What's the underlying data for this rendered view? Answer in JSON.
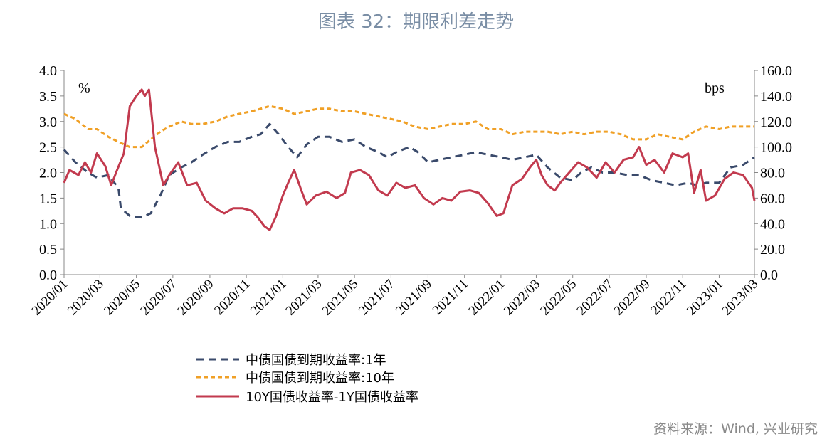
{
  "title": "图表 32：期限利差走势",
  "source": "资料来源：Wind, 兴业研究",
  "colors": {
    "y1": "#3a4a6b",
    "y10": "#f0a026",
    "spread": "#c23a4e"
  },
  "chart_data": {
    "type": "line",
    "left_unit": "%",
    "right_unit": "bps",
    "ylim_left": [
      0,
      4
    ],
    "ylim_right": [
      0,
      160
    ],
    "left_ticks": [
      "0.0",
      "0.5",
      "1.0",
      "1.5",
      "2.0",
      "2.5",
      "3.0",
      "3.5",
      "4.0"
    ],
    "right_ticks": [
      "0.0",
      "20.0",
      "40.0",
      "60.0",
      "80.0",
      "100.0",
      "120.0",
      "140.0",
      "160.0"
    ],
    "x_ticks": [
      "2020/01",
      "2020/03",
      "2020/05",
      "2020/07",
      "2020/09",
      "2020/11",
      "2021/01",
      "2021/03",
      "2021/05",
      "2021/07",
      "2021/09",
      "2021/11",
      "2022/01",
      "2022/03",
      "2022/05",
      "2022/07",
      "2022/09",
      "2022/11",
      "2023/01",
      "2023/03"
    ],
    "x_range": [
      "2020-01-01",
      "2023-03-01"
    ],
    "grid": false,
    "legend_position": "bottom",
    "series": [
      {
        "name": "中债国债到期收益率:1年",
        "axis": "left",
        "style": "dashed",
        "points": [
          [
            "2020-01-01",
            2.45
          ],
          [
            "2020-01-20",
            2.2
          ],
          [
            "2020-02-10",
            2.0
          ],
          [
            "2020-02-25",
            1.9
          ],
          [
            "2020-03-15",
            1.95
          ],
          [
            "2020-04-01",
            1.7
          ],
          [
            "2020-04-05",
            1.3
          ],
          [
            "2020-04-20",
            1.15
          ],
          [
            "2020-05-10",
            1.12
          ],
          [
            "2020-05-25",
            1.2
          ],
          [
            "2020-06-10",
            1.55
          ],
          [
            "2020-06-25",
            1.95
          ],
          [
            "2020-07-15",
            2.1
          ],
          [
            "2020-08-01",
            2.2
          ],
          [
            "2020-08-20",
            2.35
          ],
          [
            "2020-09-10",
            2.5
          ],
          [
            "2020-10-01",
            2.6
          ],
          [
            "2020-10-20",
            2.6
          ],
          [
            "2020-11-10",
            2.7
          ],
          [
            "2020-11-25",
            2.75
          ],
          [
            "2020-12-10",
            2.95
          ],
          [
            "2020-12-25",
            2.75
          ],
          [
            "2021-01-10",
            2.5
          ],
          [
            "2021-01-25",
            2.3
          ],
          [
            "2021-02-10",
            2.55
          ],
          [
            "2021-03-01",
            2.7
          ],
          [
            "2021-03-20",
            2.7
          ],
          [
            "2021-04-10",
            2.6
          ],
          [
            "2021-05-01",
            2.65
          ],
          [
            "2021-05-20",
            2.5
          ],
          [
            "2021-06-10",
            2.4
          ],
          [
            "2021-06-25",
            2.3
          ],
          [
            "2021-07-10",
            2.4
          ],
          [
            "2021-08-01",
            2.5
          ],
          [
            "2021-08-15",
            2.4
          ],
          [
            "2021-09-01",
            2.2
          ],
          [
            "2021-09-20",
            2.25
          ],
          [
            "2021-10-10",
            2.3
          ],
          [
            "2021-11-01",
            2.35
          ],
          [
            "2021-11-20",
            2.4
          ],
          [
            "2021-12-10",
            2.35
          ],
          [
            "2022-01-01",
            2.3
          ],
          [
            "2022-01-20",
            2.25
          ],
          [
            "2022-02-10",
            2.3
          ],
          [
            "2022-03-01",
            2.35
          ],
          [
            "2022-03-20",
            2.1
          ],
          [
            "2022-04-10",
            1.9
          ],
          [
            "2022-05-01",
            1.85
          ],
          [
            "2022-05-15",
            2.0
          ],
          [
            "2022-06-01",
            2.1
          ],
          [
            "2022-06-20",
            2.0
          ],
          [
            "2022-07-10",
            2.0
          ],
          [
            "2022-08-01",
            1.95
          ],
          [
            "2022-08-20",
            1.95
          ],
          [
            "2022-09-10",
            1.85
          ],
          [
            "2022-10-01",
            1.8
          ],
          [
            "2022-10-20",
            1.75
          ],
          [
            "2022-11-10",
            1.8
          ],
          [
            "2022-11-25",
            1.75
          ],
          [
            "2022-12-10",
            1.8
          ],
          [
            "2023-01-01",
            1.8
          ],
          [
            "2023-01-20",
            2.1
          ],
          [
            "2023-02-10",
            2.15
          ],
          [
            "2023-03-01",
            2.3
          ]
        ]
      },
      {
        "name": "中债国债到期收益率:10年",
        "axis": "left",
        "style": "dashed",
        "points": [
          [
            "2020-01-01",
            3.15
          ],
          [
            "2020-01-20",
            3.05
          ],
          [
            "2020-02-10",
            2.85
          ],
          [
            "2020-02-25",
            2.85
          ],
          [
            "2020-03-15",
            2.7
          ],
          [
            "2020-04-01",
            2.6
          ],
          [
            "2020-04-20",
            2.5
          ],
          [
            "2020-05-10",
            2.5
          ],
          [
            "2020-05-25",
            2.65
          ],
          [
            "2020-06-10",
            2.8
          ],
          [
            "2020-06-25",
            2.9
          ],
          [
            "2020-07-15",
            3.0
          ],
          [
            "2020-08-01",
            2.95
          ],
          [
            "2020-08-20",
            2.95
          ],
          [
            "2020-09-10",
            3.0
          ],
          [
            "2020-10-01",
            3.1
          ],
          [
            "2020-10-20",
            3.15
          ],
          [
            "2020-11-10",
            3.2
          ],
          [
            "2020-11-25",
            3.25
          ],
          [
            "2020-12-10",
            3.3
          ],
          [
            "2021-01-01",
            3.25
          ],
          [
            "2021-01-20",
            3.15
          ],
          [
            "2021-02-10",
            3.2
          ],
          [
            "2021-03-01",
            3.25
          ],
          [
            "2021-03-20",
            3.25
          ],
          [
            "2021-04-10",
            3.2
          ],
          [
            "2021-05-01",
            3.2
          ],
          [
            "2021-05-20",
            3.15
          ],
          [
            "2021-06-10",
            3.1
          ],
          [
            "2021-07-01",
            3.05
          ],
          [
            "2021-07-20",
            3.0
          ],
          [
            "2021-08-10",
            2.9
          ],
          [
            "2021-09-01",
            2.85
          ],
          [
            "2021-09-20",
            2.9
          ],
          [
            "2021-10-10",
            2.95
          ],
          [
            "2021-11-01",
            2.95
          ],
          [
            "2021-11-20",
            3.0
          ],
          [
            "2021-12-10",
            2.85
          ],
          [
            "2022-01-01",
            2.85
          ],
          [
            "2022-01-20",
            2.75
          ],
          [
            "2022-02-10",
            2.8
          ],
          [
            "2022-03-01",
            2.8
          ],
          [
            "2022-03-20",
            2.8
          ],
          [
            "2022-04-10",
            2.75
          ],
          [
            "2022-05-01",
            2.8
          ],
          [
            "2022-05-20",
            2.75
          ],
          [
            "2022-06-10",
            2.8
          ],
          [
            "2022-07-01",
            2.8
          ],
          [
            "2022-07-20",
            2.75
          ],
          [
            "2022-08-10",
            2.65
          ],
          [
            "2022-09-01",
            2.65
          ],
          [
            "2022-09-20",
            2.75
          ],
          [
            "2022-10-10",
            2.7
          ],
          [
            "2022-11-01",
            2.65
          ],
          [
            "2022-11-20",
            2.8
          ],
          [
            "2022-12-10",
            2.9
          ],
          [
            "2023-01-01",
            2.85
          ],
          [
            "2023-01-20",
            2.9
          ],
          [
            "2023-02-10",
            2.9
          ],
          [
            "2023-03-01",
            2.9
          ]
        ]
      },
      {
        "name": "10Y国债收益率-1Y国债收益率",
        "axis": "right",
        "style": "solid",
        "points": [
          [
            "2020-01-01",
            72
          ],
          [
            "2020-01-10",
            82
          ],
          [
            "2020-01-25",
            78
          ],
          [
            "2020-02-05",
            88
          ],
          [
            "2020-02-15",
            80
          ],
          [
            "2020-02-25",
            95
          ],
          [
            "2020-03-10",
            85
          ],
          [
            "2020-03-20",
            70
          ],
          [
            "2020-03-28",
            80
          ],
          [
            "2020-04-10",
            95
          ],
          [
            "2020-04-20",
            132
          ],
          [
            "2020-05-01",
            140
          ],
          [
            "2020-05-10",
            145
          ],
          [
            "2020-05-15",
            140
          ],
          [
            "2020-05-22",
            145
          ],
          [
            "2020-06-01",
            100
          ],
          [
            "2020-06-15",
            70
          ],
          [
            "2020-06-25",
            78
          ],
          [
            "2020-07-10",
            88
          ],
          [
            "2020-07-25",
            70
          ],
          [
            "2020-08-10",
            72
          ],
          [
            "2020-08-25",
            58
          ],
          [
            "2020-09-10",
            52
          ],
          [
            "2020-09-25",
            48
          ],
          [
            "2020-10-10",
            52
          ],
          [
            "2020-10-25",
            52
          ],
          [
            "2020-11-10",
            50
          ],
          [
            "2020-11-20",
            45
          ],
          [
            "2020-12-01",
            38
          ],
          [
            "2020-12-10",
            35
          ],
          [
            "2020-12-20",
            45
          ],
          [
            "2021-01-01",
            62
          ],
          [
            "2021-01-10",
            72
          ],
          [
            "2021-01-20",
            82
          ],
          [
            "2021-02-01",
            66
          ],
          [
            "2021-02-10",
            55
          ],
          [
            "2021-02-25",
            62
          ],
          [
            "2021-03-15",
            65
          ],
          [
            "2021-04-01",
            60
          ],
          [
            "2021-04-15",
            64
          ],
          [
            "2021-04-25",
            80
          ],
          [
            "2021-05-10",
            82
          ],
          [
            "2021-05-25",
            78
          ],
          [
            "2021-06-10",
            66
          ],
          [
            "2021-06-25",
            62
          ],
          [
            "2021-07-10",
            72
          ],
          [
            "2021-07-25",
            68
          ],
          [
            "2021-08-10",
            70
          ],
          [
            "2021-08-25",
            60
          ],
          [
            "2021-09-10",
            55
          ],
          [
            "2021-09-25",
            60
          ],
          [
            "2021-10-10",
            58
          ],
          [
            "2021-10-25",
            65
          ],
          [
            "2021-11-10",
            66
          ],
          [
            "2021-11-25",
            64
          ],
          [
            "2021-12-10",
            56
          ],
          [
            "2021-12-25",
            46
          ],
          [
            "2022-01-05",
            48
          ],
          [
            "2022-01-20",
            70
          ],
          [
            "2022-02-05",
            75
          ],
          [
            "2022-02-20",
            85
          ],
          [
            "2022-03-01",
            90
          ],
          [
            "2022-03-10",
            78
          ],
          [
            "2022-03-20",
            70
          ],
          [
            "2022-04-01",
            66
          ],
          [
            "2022-04-10",
            72
          ],
          [
            "2022-04-25",
            80
          ],
          [
            "2022-05-10",
            88
          ],
          [
            "2022-05-25",
            84
          ],
          [
            "2022-06-10",
            76
          ],
          [
            "2022-06-25",
            88
          ],
          [
            "2022-07-10",
            80
          ],
          [
            "2022-07-25",
            90
          ],
          [
            "2022-08-10",
            92
          ],
          [
            "2022-08-20",
            100
          ],
          [
            "2022-09-01",
            86
          ],
          [
            "2022-09-15",
            90
          ],
          [
            "2022-10-01",
            80
          ],
          [
            "2022-10-15",
            95
          ],
          [
            "2022-11-01",
            92
          ],
          [
            "2022-11-10",
            95
          ],
          [
            "2022-11-20",
            64
          ],
          [
            "2022-12-01",
            82
          ],
          [
            "2022-12-10",
            58
          ],
          [
            "2022-12-25",
            62
          ],
          [
            "2023-01-10",
            75
          ],
          [
            "2023-01-25",
            80
          ],
          [
            "2023-02-10",
            78
          ],
          [
            "2023-02-25",
            68
          ],
          [
            "2023-03-01",
            58
          ]
        ]
      }
    ]
  }
}
